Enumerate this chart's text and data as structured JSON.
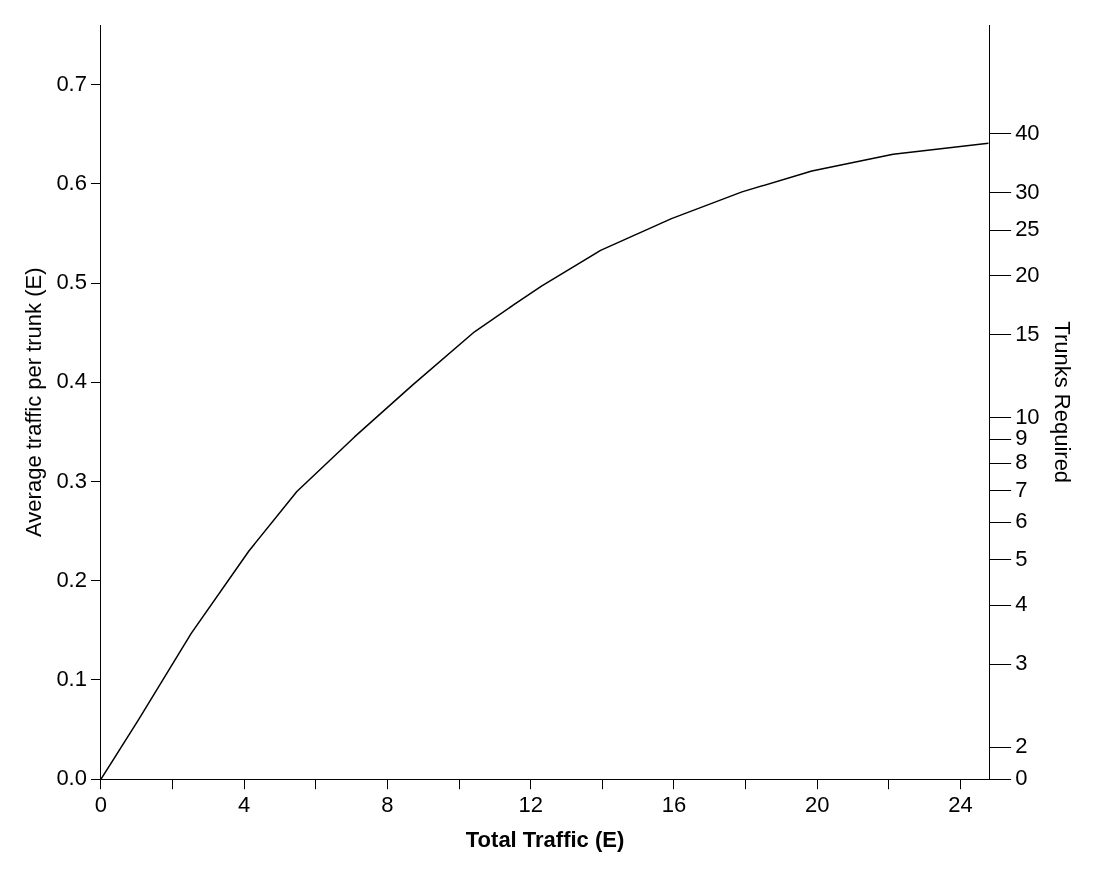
{
  "chart_data": {
    "type": "line",
    "xlabel": "Total Traffic (E)",
    "ylabel": "Average traffic per trunk (E)",
    "y2label": "Trunks Required",
    "x": [
      0,
      1.05,
      2.52,
      4.13,
      5.47,
      7.08,
      8.69,
      10.43,
      11.52,
      12.3,
      13.95,
      15.93,
      17.9,
      19.85,
      22.12,
      24.78
    ],
    "series": [
      {
        "color": "#000000",
        "values": [
          0,
          0.06,
          0.147,
          0.23,
          0.29,
          0.345,
          0.397,
          0.451,
          0.478,
          0.497,
          0.533,
          0.565,
          0.592,
          0.613,
          0.63,
          0.641
        ]
      }
    ],
    "xlim": [
      0,
      24.8
    ],
    "xticks": [
      0,
      {
        "value": 2,
        "label": null
      },
      4,
      {
        "value": 6,
        "label": null
      },
      8,
      {
        "value": 10,
        "label": null
      },
      12,
      {
        "value": 14,
        "label": null
      },
      16,
      {
        "value": 18,
        "label": null
      },
      20,
      {
        "value": 22,
        "label": null
      },
      24
    ],
    "ylim": [
      0,
      0.76
    ],
    "yticks": [
      {
        "value": 0,
        "label": "0.0"
      },
      0.1,
      0.2,
      0.3,
      0.4,
      0.5,
      0.6,
      0.7
    ],
    "y2lim": [
      0,
      68
    ],
    "y2ticks": [
      0,
      2,
      3,
      4,
      5,
      6,
      7,
      8,
      9,
      10,
      15,
      20,
      25,
      30,
      40
    ],
    "log": "y2",
    "grid": false,
    "legend": false,
    "marker": "none",
    "line_style": "solid"
  }
}
